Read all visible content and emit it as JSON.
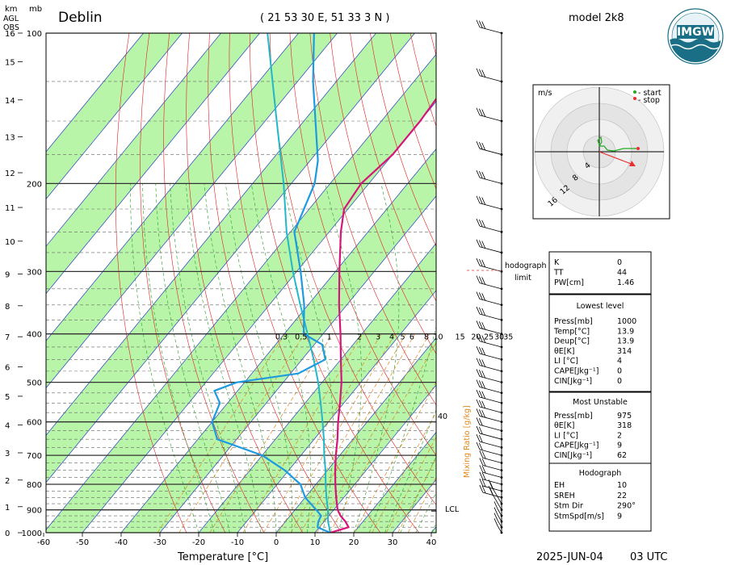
{
  "header": {
    "station": "Deblin",
    "coords": "( 21 53 30  E, 51 33 3 N )",
    "model": "model 2k8",
    "date": "2025-JUN-04",
    "time": "03 UTC"
  },
  "logo": {
    "text": "IMGW"
  },
  "axes": {
    "km_label": "km",
    "agl_label": [
      "AGL",
      "OBS"
    ],
    "mb_label": "mb",
    "xlabel": "Temperature [°C]",
    "mixing_ratio_label": "Mixing Ratio [g/kg]",
    "km_ticks": [
      "16",
      "15",
      "14",
      "13",
      "12",
      "11",
      "10",
      "9",
      "8",
      "7",
      "6",
      "5",
      "4",
      "3",
      "2",
      "1",
      "0"
    ],
    "p_ticks": [
      "100",
      "200",
      "300",
      "400",
      "500",
      "600",
      "700",
      "800",
      "900",
      "1000"
    ],
    "t_ticks": [
      "-60",
      "-50",
      "-40",
      "-30",
      "-20",
      "-10",
      "0",
      "10",
      "20",
      "30",
      "40"
    ],
    "mr_ticks": [
      "0.3",
      "0.5",
      "1",
      "2",
      "3",
      "4",
      "5",
      "6",
      "8",
      "10",
      "15",
      "20",
      "25",
      "30",
      "35"
    ],
    "mr_side_tick": "40",
    "lcl_label": "LCL"
  },
  "hodograph": {
    "unit_label": "m/s",
    "legend_start": "- start",
    "legend_stop": "- stop",
    "ring_labels": [
      "4",
      "8",
      "12",
      "16"
    ],
    "limit_label": [
      "hodograph",
      "limit"
    ],
    "colors": {
      "start": "#22aa22",
      "stop": "#e83030"
    }
  },
  "indices": {
    "top": [
      {
        "k": "K",
        "v": "0"
      },
      {
        "k": "TT",
        "v": "44"
      },
      {
        "k": "PW[cm]",
        "v": "1.46"
      }
    ],
    "lowest_title": "Lowest level",
    "lowest": [
      {
        "k": "Press[mb]",
        "v": "1000"
      },
      {
        "k": "Temp[°C]",
        "v": "13.9"
      },
      {
        "k": "Deup[°C]",
        "v": "13.9"
      },
      {
        "k": "θE[K]",
        "v": "314"
      },
      {
        "k": "LI [°C]",
        "v": "4"
      },
      {
        "k": "CAPE[Jkg⁻¹]",
        "v": "0"
      },
      {
        "k": "CIN[Jkg⁻¹]",
        "v": "0"
      }
    ],
    "mu_title": "Most Unstable",
    "mu": [
      {
        "k": "Press[mb]",
        "v": "975"
      },
      {
        "k": "θE[K]",
        "v": "318"
      },
      {
        "k": "LI [°C]",
        "v": "2"
      },
      {
        "k": "CAPE[Jkg⁻¹]",
        "v": "9"
      },
      {
        "k": "CIN[Jkg⁻¹]",
        "v": "62"
      }
    ],
    "hodo_title": "Hodograph",
    "hodo": [
      {
        "k": "EH",
        "v": "10"
      },
      {
        "k": "SREH",
        "v": "22"
      },
      {
        "k": "Stm Dir",
        "v": "290°"
      },
      {
        "k": "StmSpd[m/s]",
        "v": "9"
      }
    ]
  },
  "colors": {
    "temperature": "#d6157a",
    "dewpoint": "#1e9be0",
    "parcel": "#22b8c8",
    "dry_adiabat": "#e02020",
    "moist_adiabat": "#22a022",
    "isotherm": "#2040c0",
    "mixing_ratio": "#e08a1e",
    "green_band": "#b8f5a8"
  },
  "chart_data": {
    "type": "skew-t",
    "x_axis": {
      "label": "Temperature [°C]",
      "range": [
        -60,
        40
      ]
    },
    "y_axis": {
      "label": "mb",
      "range": [
        1000,
        100
      ]
    },
    "temperature": [
      {
        "p": 1000,
        "t": 13.9
      },
      {
        "p": 975,
        "t": 17.5
      },
      {
        "p": 950,
        "t": 15.5
      },
      {
        "p": 925,
        "t": 13.0
      },
      {
        "p": 900,
        "t": 11.0
      },
      {
        "p": 850,
        "t": 8.0
      },
      {
        "p": 800,
        "t": 5.0
      },
      {
        "p": 750,
        "t": 2.0
      },
      {
        "p": 700,
        "t": -1.0
      },
      {
        "p": 650,
        "t": -4.0
      },
      {
        "p": 600,
        "t": -7.5
      },
      {
        "p": 550,
        "t": -11.0
      },
      {
        "p": 500,
        "t": -15.0
      },
      {
        "p": 450,
        "t": -20.0
      },
      {
        "p": 400,
        "t": -25.5
      },
      {
        "p": 350,
        "t": -32.0
      },
      {
        "p": 300,
        "t": -39.0
      },
      {
        "p": 250,
        "t": -47.0
      },
      {
        "p": 225,
        "t": -51.0
      },
      {
        "p": 200,
        "t": -52.0
      },
      {
        "p": 175,
        "t": -50.0
      },
      {
        "p": 150,
        "t": -50.0
      },
      {
        "p": 125,
        "t": -51.0
      },
      {
        "p": 100,
        "t": -53.0
      }
    ],
    "dewpoint": [
      {
        "p": 1000,
        "t": 13.9
      },
      {
        "p": 975,
        "t": 9.5
      },
      {
        "p": 950,
        "t": 8.5
      },
      {
        "p": 925,
        "t": 8.0
      },
      {
        "p": 900,
        "t": 5.5
      },
      {
        "p": 850,
        "t": 0.0
      },
      {
        "p": 800,
        "t": -4.0
      },
      {
        "p": 750,
        "t": -11.0
      },
      {
        "p": 700,
        "t": -20.0
      },
      {
        "p": 650,
        "t": -35.0
      },
      {
        "p": 600,
        "t": -40.0
      },
      {
        "p": 550,
        "t": -42.0
      },
      {
        "p": 520,
        "t": -46.0
      },
      {
        "p": 500,
        "t": -42.0
      },
      {
        "p": 480,
        "t": -28.0
      },
      {
        "p": 450,
        "t": -24.0
      },
      {
        "p": 420,
        "t": -28.0
      },
      {
        "p": 400,
        "t": -35.0
      },
      {
        "p": 350,
        "t": -41.0
      },
      {
        "p": 300,
        "t": -49.0
      },
      {
        "p": 250,
        "t": -59.0
      },
      {
        "p": 200,
        "t": -64.0
      },
      {
        "p": 180,
        "t": -68.0
      },
      {
        "p": 150,
        "t": -77.0
      },
      {
        "p": 125,
        "t": -86.0
      },
      {
        "p": 100,
        "t": -96.0
      }
    ],
    "parcel": [
      {
        "p": 1000,
        "t": 13.9
      },
      {
        "p": 975,
        "t": 12.5
      },
      {
        "p": 950,
        "t": 11.0
      },
      {
        "p": 900,
        "t": 8.5
      },
      {
        "p": 850,
        "t": 5.5
      },
      {
        "p": 800,
        "t": 2.5
      },
      {
        "p": 750,
        "t": -0.5
      },
      {
        "p": 700,
        "t": -4.0
      },
      {
        "p": 650,
        "t": -7.5
      },
      {
        "p": 600,
        "t": -11.5
      },
      {
        "p": 550,
        "t": -16.0
      },
      {
        "p": 500,
        "t": -21.0
      },
      {
        "p": 450,
        "t": -27.0
      },
      {
        "p": 400,
        "t": -34.0
      },
      {
        "p": 350,
        "t": -42.0
      },
      {
        "p": 300,
        "t": -51.0
      },
      {
        "p": 250,
        "t": -61.0
      },
      {
        "p": 200,
        "t": -72.0
      },
      {
        "p": 150,
        "t": -87.0
      },
      {
        "p": 100,
        "t": -108.0
      }
    ],
    "lcl_pressure": 905,
    "hodograph_limit_pressure": 300
  }
}
